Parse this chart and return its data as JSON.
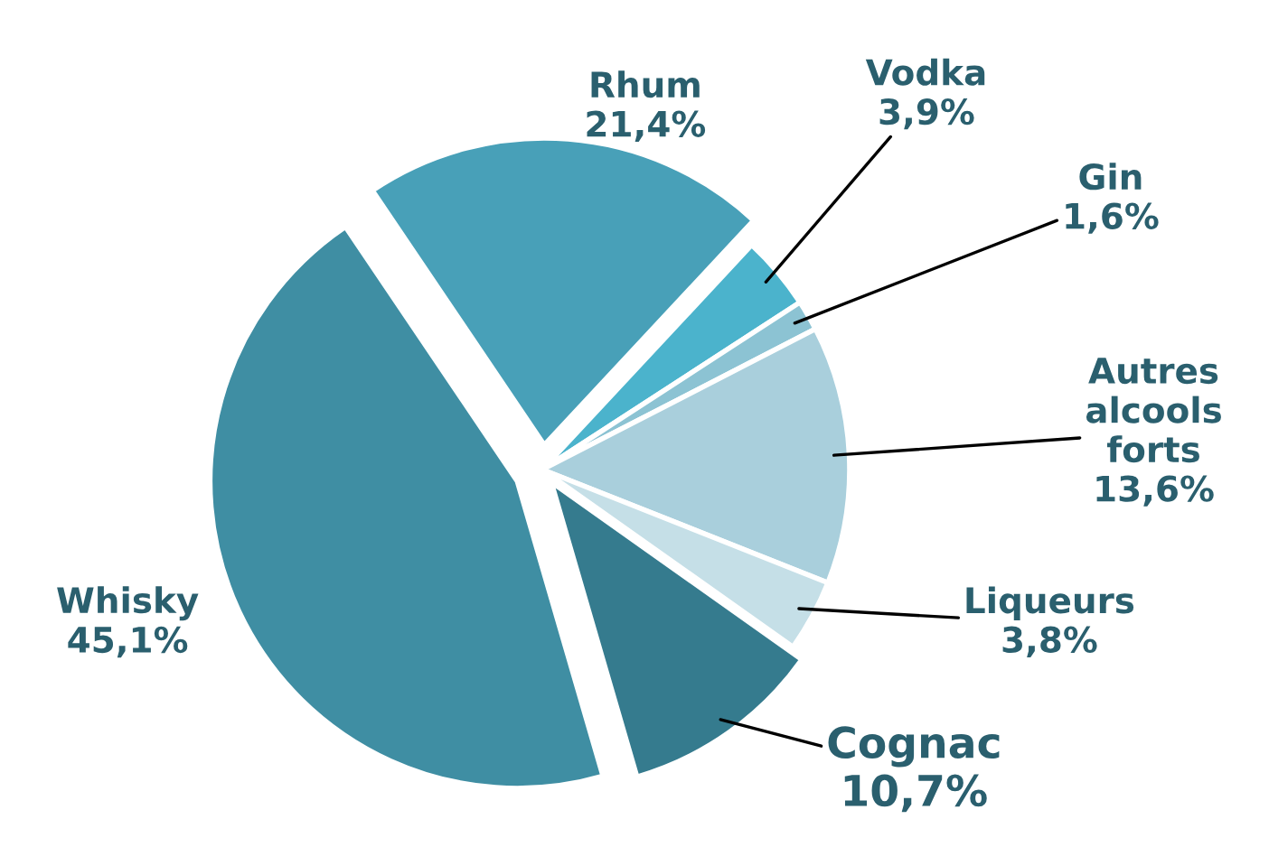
{
  "chart_data": {
    "type": "pie",
    "categories": [
      "Rhum",
      "Vodka",
      "Gin",
      "Autres alcools forts",
      "Liqueurs",
      "Cognac",
      "Whisky"
    ],
    "values": [
      21.4,
      3.9,
      1.6,
      13.6,
      3.8,
      10.7,
      45.1
    ],
    "value_labels": [
      "21,4%",
      "3,9%",
      "1,6%",
      "13,6%",
      "3,8%",
      "10,7%",
      "45,1%"
    ],
    "colors": [
      "#48a0b8",
      "#4bb3cc",
      "#8cc3d3",
      "#a9cfdc",
      "#c5dfe7",
      "#357b8e",
      "#3f8ea3"
    ],
    "legend": false
  }
}
